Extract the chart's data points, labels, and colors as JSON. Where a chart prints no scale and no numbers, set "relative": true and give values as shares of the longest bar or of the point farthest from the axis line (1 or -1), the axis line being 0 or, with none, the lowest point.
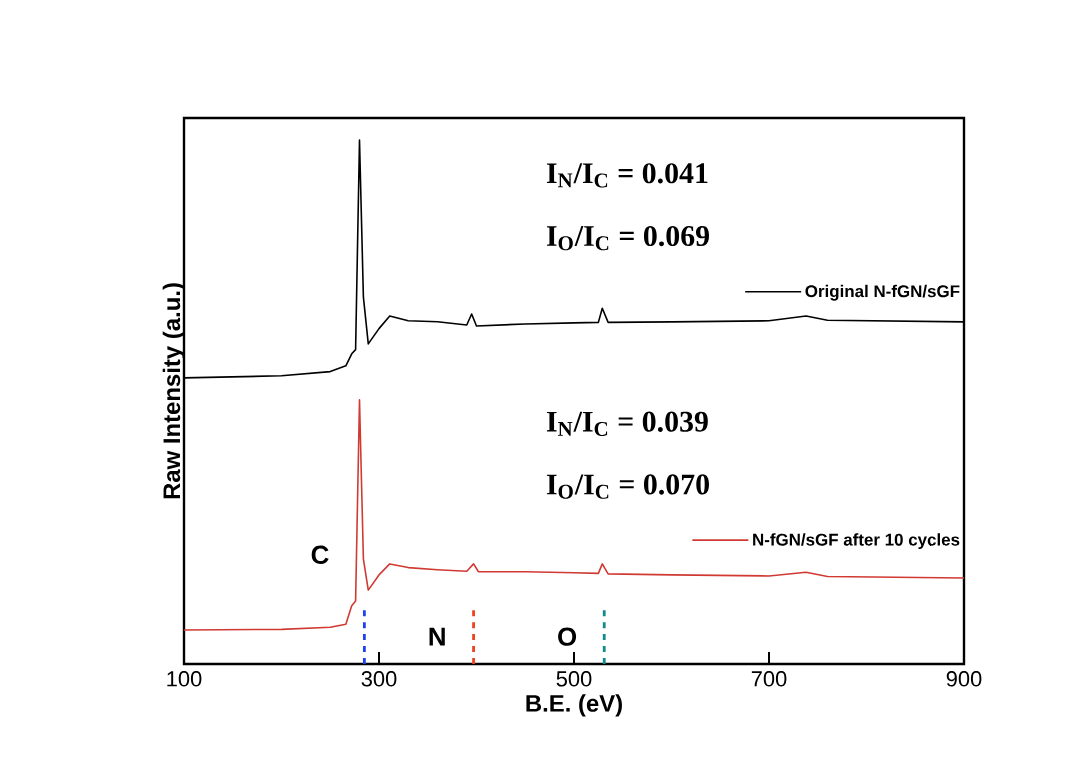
{
  "chart_data": {
    "type": "line",
    "relative": true,
    "xlabel": "B.E. (eV)",
    "ylabel": "Raw Intensity (a.u.)",
    "xlim": [
      100,
      900
    ],
    "xticks": [
      100,
      300,
      500,
      700,
      900
    ],
    "legend": "right",
    "grid": false,
    "marker": "none",
    "line_style": "solid",
    "series": [
      {
        "name": "Original N-fGN/sGF",
        "color": "#000000",
        "x": [
          100,
          200,
          250,
          266,
          272,
          276,
          280,
          284,
          289,
          300,
          311,
          330,
          360,
          390,
          395,
          400,
          450,
          500,
          525,
          529,
          535,
          600,
          700,
          738,
          760,
          900
        ],
        "values": [
          0.546,
          0.55,
          0.558,
          0.569,
          0.592,
          0.6,
          1.0,
          0.7,
          0.611,
          0.64,
          0.664,
          0.655,
          0.653,
          0.647,
          0.668,
          0.645,
          0.649,
          0.651,
          0.652,
          0.679,
          0.652,
          0.653,
          0.655,
          0.664,
          0.656,
          0.653
        ]
      },
      {
        "name": "N-fGN/sGF after 10 cycles",
        "color": "#d03a32",
        "x": [
          100,
          200,
          250,
          266,
          272,
          276,
          280,
          284,
          289,
          300,
          311,
          330,
          360,
          390,
          397,
          402,
          450,
          500,
          525,
          529,
          535,
          600,
          700,
          738,
          760,
          900
        ],
        "values": [
          0.065,
          0.066,
          0.07,
          0.076,
          0.111,
          0.12,
          0.504,
          0.2,
          0.141,
          0.17,
          0.191,
          0.184,
          0.18,
          0.177,
          0.191,
          0.176,
          0.176,
          0.174,
          0.173,
          0.191,
          0.172,
          0.17,
          0.168,
          0.175,
          0.167,
          0.164
        ]
      }
    ],
    "ref_lines": [
      {
        "axis": "x",
        "value": 285,
        "label": "C",
        "color": "#2040f0",
        "line_style": "dashed"
      },
      {
        "axis": "x",
        "value": 397,
        "label": "N",
        "color": "#f04020",
        "line_style": "dashed"
      },
      {
        "axis": "x",
        "value": 531,
        "label": "O",
        "color": "#138a8a",
        "line_style": "dashed"
      }
    ],
    "annotations": [
      "I$_{N}$/I$_{C}$ = 0.041",
      "I$_{O}$/I$_{C}$ = 0.069",
      "I$_{N}$/I$_{C}$ = 0.039",
      "I$_{O}$/I$_{C}$ = 0.070"
    ]
  }
}
